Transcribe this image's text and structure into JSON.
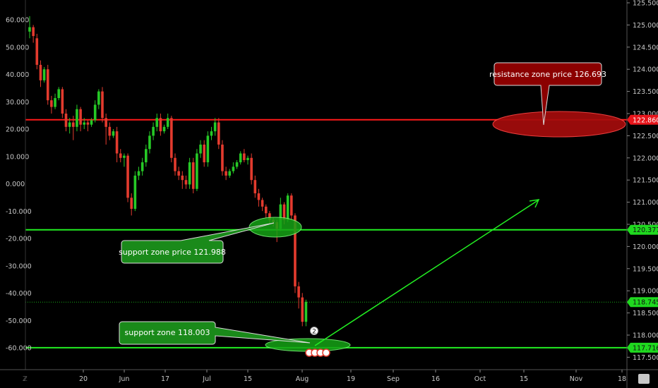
{
  "chart_data": {
    "type": "candlestick",
    "left_axis": {
      "ticks": [
        "60.000",
        "50.000",
        "40.000",
        "30.000",
        "20.000",
        "10.000",
        "0.000",
        "-10.000",
        "-20.000",
        "-30.000",
        "-40.000",
        "-50.000",
        "-60.000"
      ],
      "values": [
        60,
        50,
        40,
        30,
        20,
        10,
        0,
        -10,
        -20,
        -30,
        -40,
        -50,
        -60
      ]
    },
    "right_axis": {
      "ticks": [
        "125.500",
        "125.000",
        "124.500",
        "124.000",
        "123.500",
        "123.000",
        "122.500",
        "122.000",
        "121.500",
        "121.000",
        "120.500",
        "120.000",
        "119.500",
        "119.000",
        "118.500",
        "118.000",
        "117.500"
      ],
      "values": [
        125.5,
        125.0,
        124.5,
        124.0,
        123.5,
        123.0,
        122.5,
        122.0,
        121.5,
        121.0,
        120.5,
        120.0,
        119.5,
        119.0,
        118.5,
        118.0,
        117.5
      ],
      "ylim": [
        117.4,
        125.6
      ]
    },
    "x_ticks": [
      "20",
      "Jun",
      "17",
      "Jul",
      "15",
      "Aug",
      "19",
      "Sep",
      "16",
      "Oct",
      "15",
      "Nov",
      "18"
    ],
    "price_tags": [
      {
        "label": "122.860",
        "value": 122.86,
        "color": "#e8151b"
      },
      {
        "label": "120.377",
        "value": 120.377,
        "color": "#1fd91f"
      },
      {
        "label": "118.745",
        "value": 118.745,
        "color": "#1fd91f"
      },
      {
        "label": "117.716",
        "value": 117.716,
        "color": "#1fd91f"
      }
    ],
    "horizontal_lines": [
      {
        "value": 122.86,
        "color": "#ff1a1a"
      },
      {
        "value": 120.377,
        "color": "#22ee22"
      },
      {
        "value": 117.716,
        "color": "#22ee22"
      }
    ],
    "annotations": [
      {
        "text": "resistance zone price 126.693",
        "color": "#8b0000"
      },
      {
        "text": "support zone  price 121.988",
        "color": "#1a8a1a"
      },
      {
        "text": "support zone 118.003",
        "color": "#1a8a1a"
      }
    ],
    "event_badge": "2",
    "candles": [
      [
        124.85,
        124.95,
        125.2,
        124.7
      ],
      [
        124.95,
        124.75,
        125.0,
        124.6
      ],
      [
        124.7,
        124.1,
        124.8,
        124.0
      ],
      [
        124.1,
        123.75,
        124.2,
        123.6
      ],
      [
        123.75,
        124.0,
        124.05,
        123.7
      ],
      [
        124.0,
        123.3,
        124.1,
        123.2
      ],
      [
        123.3,
        123.15,
        123.4,
        123.0
      ],
      [
        123.15,
        123.35,
        123.45,
        123.1
      ],
      [
        123.35,
        123.55,
        123.6,
        123.3
      ],
      [
        123.55,
        123.0,
        123.6,
        122.9
      ],
      [
        123.0,
        122.7,
        123.1,
        122.6
      ],
      [
        122.7,
        122.8,
        122.9,
        122.55
      ],
      [
        122.8,
        122.7,
        122.95,
        122.4
      ],
      [
        122.7,
        123.1,
        123.2,
        122.6
      ],
      [
        123.1,
        122.75,
        123.15,
        122.6
      ],
      [
        122.75,
        122.8,
        122.9,
        122.65
      ],
      [
        122.8,
        122.75,
        122.85,
        122.6
      ],
      [
        122.75,
        122.85,
        122.9,
        122.7
      ],
      [
        122.85,
        123.2,
        123.3,
        122.8
      ],
      [
        123.2,
        123.5,
        123.55,
        123.1
      ],
      [
        123.5,
        122.9,
        123.6,
        122.8
      ],
      [
        122.9,
        122.7,
        123.0,
        122.3
      ],
      [
        122.7,
        122.5,
        122.8,
        122.4
      ],
      [
        122.5,
        122.6,
        122.65,
        122.45
      ],
      [
        122.6,
        122.1,
        122.7,
        121.9
      ],
      [
        122.1,
        122.0,
        122.2,
        121.9
      ],
      [
        122.0,
        122.05,
        122.1,
        121.8
      ],
      [
        122.05,
        121.1,
        122.1,
        121.0
      ],
      [
        121.1,
        120.85,
        121.2,
        120.7
      ],
      [
        120.85,
        121.6,
        121.7,
        120.8
      ],
      [
        121.6,
        121.7,
        121.8,
        121.5
      ],
      [
        121.7,
        121.9,
        122.0,
        121.6
      ],
      [
        121.9,
        122.2,
        122.3,
        121.8
      ],
      [
        122.2,
        122.5,
        122.6,
        122.1
      ],
      [
        122.5,
        122.7,
        122.8,
        122.4
      ],
      [
        122.7,
        122.9,
        123.0,
        122.6
      ],
      [
        122.9,
        122.6,
        123.0,
        122.5
      ],
      [
        122.6,
        122.7,
        122.75,
        122.55
      ],
      [
        122.7,
        122.9,
        123.0,
        122.65
      ],
      [
        122.9,
        122.0,
        122.95,
        121.9
      ],
      [
        122.0,
        121.7,
        122.1,
        121.6
      ],
      [
        121.7,
        121.6,
        121.8,
        121.5
      ],
      [
        121.6,
        121.5,
        121.7,
        121.3
      ],
      [
        121.5,
        121.4,
        121.6,
        121.3
      ],
      [
        121.4,
        121.9,
        122.0,
        121.3
      ],
      [
        121.9,
        121.3,
        122.0,
        121.2
      ],
      [
        121.3,
        122.1,
        122.2,
        121.25
      ],
      [
        122.1,
        122.3,
        122.4,
        122.0
      ],
      [
        122.3,
        121.9,
        122.4,
        121.8
      ],
      [
        121.9,
        122.5,
        122.6,
        121.8
      ],
      [
        122.5,
        122.6,
        122.7,
        122.4
      ],
      [
        122.6,
        122.8,
        122.9,
        122.5
      ],
      [
        122.8,
        122.3,
        122.9,
        122.2
      ],
      [
        122.3,
        121.7,
        122.4,
        121.6
      ],
      [
        121.7,
        121.6,
        121.8,
        121.5
      ],
      [
        121.6,
        121.7,
        121.75,
        121.55
      ],
      [
        121.7,
        121.8,
        121.9,
        121.65
      ],
      [
        121.8,
        121.9,
        121.95,
        121.75
      ],
      [
        121.9,
        122.1,
        122.15,
        121.85
      ],
      [
        122.1,
        121.95,
        122.2,
        121.9
      ],
      [
        121.95,
        122.0,
        122.05,
        121.85
      ],
      [
        122.0,
        121.5,
        122.1,
        121.4
      ],
      [
        121.5,
        121.2,
        121.6,
        121.1
      ],
      [
        121.2,
        121.05,
        121.3,
        120.9
      ],
      [
        121.05,
        120.9,
        121.1,
        120.8
      ],
      [
        120.9,
        120.75,
        120.95,
        120.65
      ],
      [
        120.75,
        120.6,
        120.8,
        120.5
      ],
      [
        120.6,
        120.55,
        120.65,
        120.45
      ],
      [
        120.55,
        120.4,
        120.6,
        120.1
      ],
      [
        120.4,
        120.95,
        121.1,
        120.35
      ],
      [
        120.95,
        120.6,
        121.0,
        120.5
      ],
      [
        120.6,
        121.15,
        121.2,
        120.55
      ],
      [
        121.15,
        120.7,
        121.2,
        120.6
      ],
      [
        120.7,
        119.1,
        120.75,
        118.95
      ],
      [
        119.1,
        118.85,
        119.2,
        118.6
      ],
      [
        118.85,
        118.3,
        118.95,
        118.2
      ],
      [
        118.3,
        118.75,
        118.8,
        118.2
      ]
    ]
  }
}
